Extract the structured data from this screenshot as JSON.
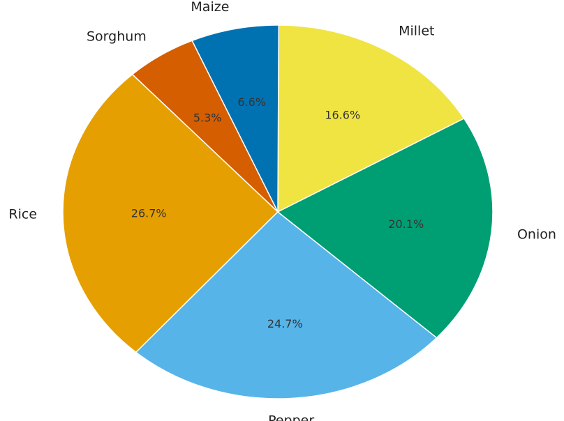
{
  "chart_data": {
    "type": "pie",
    "categories": [
      "Millet",
      "Maize",
      "Sorghum",
      "Rice",
      "Pepper",
      "Onion"
    ],
    "values": [
      16.6,
      6.6,
      5.3,
      26.7,
      24.7,
      20.1
    ],
    "value_labels": [
      "16.6%",
      "6.6%",
      "5.3%",
      "26.7%",
      "24.7%",
      "20.1%"
    ],
    "colors": [
      "#F0E442",
      "#0072B2",
      "#D55E00",
      "#E69F00",
      "#56B4E9",
      "#009E73"
    ],
    "start_angle_deg": 30,
    "direction": "counterclockwise",
    "title": "",
    "legend": "none"
  }
}
